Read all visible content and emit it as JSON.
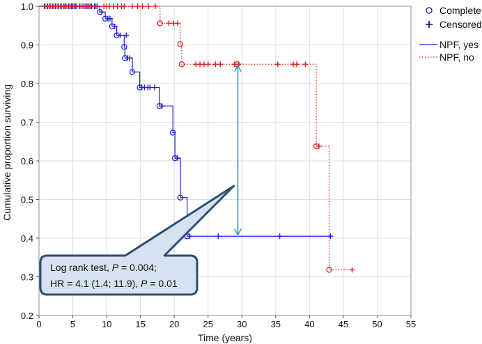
{
  "chart_data": {
    "type": "line",
    "subtype": "kaplan-meier",
    "title": "",
    "xlabel": "Time (years)",
    "ylabel": "Cumulative proportion surviving",
    "xlim": [
      0,
      55
    ],
    "ylim": [
      0.2,
      1.0
    ],
    "xticks": [
      "0",
      "5",
      "10",
      "15",
      "20",
      "25",
      "30",
      "35",
      "40",
      "45",
      "50",
      "55"
    ],
    "yticks": [
      "0.2",
      "0.3",
      "0.4",
      "0.5",
      "0.6",
      "0.7",
      "0.8",
      "0.9",
      "1.0"
    ],
    "grid": true,
    "legend": {
      "placement": "top-right",
      "marker_entries": [
        {
          "label": "Complete",
          "marker": "circle"
        },
        {
          "label": "Censored",
          "marker": "plus"
        }
      ],
      "line_entries": [
        {
          "label": "NPF, yes",
          "color": "#1f1fd0",
          "style": "solid"
        },
        {
          "label": "NPF, no",
          "color": "#e02020",
          "style": "dotted"
        }
      ]
    },
    "series": [
      {
        "name": "NPF, yes",
        "color": "#1f1fd0",
        "style": "solid",
        "steps": [
          [
            0,
            1.0
          ],
          [
            9,
            0.985
          ],
          [
            9.8,
            0.968
          ],
          [
            10.8,
            0.948
          ],
          [
            11.5,
            0.925
          ],
          [
            12.6,
            0.895
          ],
          [
            12.7,
            0.866
          ],
          [
            13.8,
            0.83
          ],
          [
            14.9,
            0.79
          ],
          [
            17.8,
            0.742
          ],
          [
            19.8,
            0.673
          ],
          [
            20.1,
            0.607
          ],
          [
            20.9,
            0.505
          ],
          [
            21.9,
            0.405
          ],
          [
            43.1,
            0.405
          ]
        ],
        "complete": [
          [
            9,
            0.985
          ],
          [
            9.8,
            0.968
          ],
          [
            10.8,
            0.948
          ],
          [
            11.5,
            0.925
          ],
          [
            12.6,
            0.895
          ],
          [
            12.7,
            0.866
          ],
          [
            13.8,
            0.83
          ],
          [
            14.9,
            0.79
          ],
          [
            17.8,
            0.742
          ],
          [
            19.8,
            0.673
          ],
          [
            20.1,
            0.607
          ],
          [
            20.9,
            0.505
          ],
          [
            21.9,
            0.405
          ]
        ],
        "censored": [
          [
            0.8,
            1.0
          ],
          [
            1.2,
            1.0
          ],
          [
            1.6,
            1.0
          ],
          [
            2.0,
            1.0
          ],
          [
            2.4,
            1.0
          ],
          [
            2.8,
            1.0
          ],
          [
            3.2,
            1.0
          ],
          [
            3.6,
            1.0
          ],
          [
            4.0,
            1.0
          ],
          [
            4.4,
            1.0
          ],
          [
            4.8,
            1.0
          ],
          [
            5.0,
            1.0
          ],
          [
            5.2,
            1.0
          ],
          [
            5.6,
            1.0
          ],
          [
            6.0,
            1.0
          ],
          [
            6.5,
            1.0
          ],
          [
            7.0,
            1.0
          ],
          [
            7.4,
            1.0
          ],
          [
            7.8,
            1.0
          ],
          [
            8.2,
            1.0
          ],
          [
            8.6,
            1.0
          ],
          [
            9.3,
            0.985
          ],
          [
            10.2,
            0.968
          ],
          [
            10.5,
            0.968
          ],
          [
            11.2,
            0.948
          ],
          [
            12.0,
            0.925
          ],
          [
            12.9,
            0.925
          ],
          [
            13.1,
            0.866
          ],
          [
            13.4,
            0.866
          ],
          [
            15.2,
            0.79
          ],
          [
            15.6,
            0.79
          ],
          [
            16.1,
            0.79
          ],
          [
            16.4,
            0.79
          ],
          [
            17.1,
            0.79
          ],
          [
            18.2,
            0.742
          ],
          [
            20.5,
            0.607
          ],
          [
            22.3,
            0.405
          ],
          [
            26.5,
            0.405
          ],
          [
            35.6,
            0.405
          ],
          [
            43.1,
            0.405
          ]
        ]
      },
      {
        "name": "NPF, no",
        "color": "#e02020",
        "style": "dotted",
        "steps": [
          [
            0,
            1.0
          ],
          [
            17.9,
            0.956
          ],
          [
            20.9,
            0.902
          ],
          [
            21.1,
            0.85
          ],
          [
            41.0,
            0.638
          ],
          [
            42.9,
            0.318
          ],
          [
            46.3,
            0.318
          ]
        ],
        "complete": [
          [
            17.9,
            0.956
          ],
          [
            20.9,
            0.902
          ],
          [
            21.1,
            0.85
          ],
          [
            29.3,
            0.85
          ],
          [
            41.0,
            0.638
          ],
          [
            42.9,
            0.318
          ]
        ],
        "censored": [
          [
            0.9,
            1.0
          ],
          [
            1.3,
            1.0
          ],
          [
            1.7,
            1.0
          ],
          [
            2.1,
            1.0
          ],
          [
            2.5,
            1.0
          ],
          [
            2.9,
            1.0
          ],
          [
            3.3,
            1.0
          ],
          [
            3.8,
            1.0
          ],
          [
            4.3,
            1.0
          ],
          [
            4.6,
            1.0
          ],
          [
            5.4,
            1.0
          ],
          [
            6.2,
            1.0
          ],
          [
            6.8,
            1.0
          ],
          [
            7.2,
            1.0
          ],
          [
            7.6,
            1.0
          ],
          [
            8.4,
            1.0
          ],
          [
            9.6,
            1.0
          ],
          [
            10.0,
            1.0
          ],
          [
            10.4,
            1.0
          ],
          [
            11.0,
            1.0
          ],
          [
            11.6,
            1.0
          ],
          [
            12.2,
            1.0
          ],
          [
            12.6,
            1.0
          ],
          [
            13.8,
            1.0
          ],
          [
            14.6,
            1.0
          ],
          [
            15.3,
            1.0
          ],
          [
            16.2,
            1.0
          ],
          [
            17.2,
            1.0
          ],
          [
            19.2,
            0.956
          ],
          [
            19.9,
            0.956
          ],
          [
            20.5,
            0.956
          ],
          [
            23.2,
            0.85
          ],
          [
            23.8,
            0.85
          ],
          [
            24.4,
            0.85
          ],
          [
            25.0,
            0.85
          ],
          [
            26.1,
            0.85
          ],
          [
            26.8,
            0.85
          ],
          [
            28.9,
            0.85
          ],
          [
            29.5,
            0.85
          ],
          [
            35.3,
            0.85
          ],
          [
            37.6,
            0.85
          ],
          [
            38.1,
            0.85
          ],
          [
            39.4,
            0.85
          ],
          [
            41.4,
            0.638
          ],
          [
            46.3,
            0.318
          ]
        ]
      }
    ],
    "annotation": {
      "lines": [
        "Log rank test, P = 0.004;",
        "HR = 4.1 (1.4; 11.9), P = 0.01"
      ],
      "line1_prefix": "Log rank test, ",
      "line1_p": "P",
      "line1_suffix": " = 0.004;",
      "line2_prefix": "HR = 4.1 (1.4; 11.9), ",
      "line2_p": "P",
      "line2_suffix": " = 0.01",
      "callout_pointer": [
        28.8,
        0.535
      ],
      "arrow": {
        "x": 29.4,
        "from": 0.405,
        "to": 0.85,
        "color": "#3a8ab8"
      },
      "box_fill": "#d6e2f0",
      "box_stroke": "#2f4f70"
    }
  }
}
